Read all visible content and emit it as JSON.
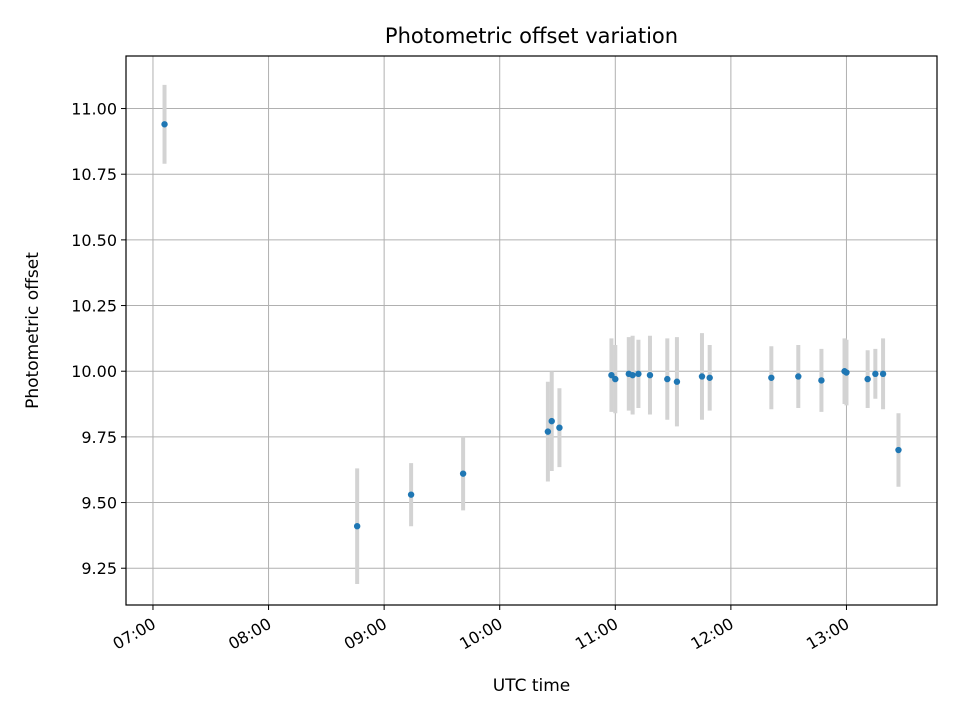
{
  "chart_data": {
    "type": "scatter",
    "title": "Photometric offset variation",
    "xlabel": "UTC time",
    "ylabel": "Photometric offset",
    "grid": true,
    "xlim": [
      "06:46",
      "13:47"
    ],
    "ylim": [
      9.11,
      11.2
    ],
    "x_ticks": [
      "07:00",
      "08:00",
      "09:00",
      "10:00",
      "11:00",
      "12:00",
      "13:00"
    ],
    "y_ticks": [
      9.25,
      9.5,
      9.75,
      10.0,
      10.25,
      10.5,
      10.75,
      11.0
    ],
    "y_tick_labels": [
      "9.25",
      "9.50",
      "9.75",
      "10.00",
      "10.25",
      "10.50",
      "10.75",
      "11.00"
    ],
    "errorbar_color": "#d3d3d3",
    "marker_color": "#1f77b4",
    "series": [
      {
        "points": [
          {
            "time": "07:06",
            "y": 10.94,
            "err": 0.15
          },
          {
            "time": "08:46",
            "y": 9.41,
            "err": 0.22
          },
          {
            "time": "09:14",
            "y": 9.53,
            "err": 0.12
          },
          {
            "time": "09:41",
            "y": 9.61,
            "err": 0.14
          },
          {
            "time": "10:25",
            "y": 9.77,
            "err": 0.19
          },
          {
            "time": "10:27",
            "y": 9.81,
            "err": 0.19
          },
          {
            "time": "10:31",
            "y": 9.785,
            "err": 0.15
          },
          {
            "time": "10:58",
            "y": 9.985,
            "err": 0.14
          },
          {
            "time": "11:00",
            "y": 9.97,
            "err": 0.13
          },
          {
            "time": "11:07",
            "y": 9.99,
            "err": 0.14
          },
          {
            "time": "11:09",
            "y": 9.985,
            "err": 0.15
          },
          {
            "time": "11:12",
            "y": 9.99,
            "err": 0.13
          },
          {
            "time": "11:18",
            "y": 9.985,
            "err": 0.15
          },
          {
            "time": "11:27",
            "y": 9.97,
            "err": 0.155
          },
          {
            "time": "11:32",
            "y": 9.96,
            "err": 0.17
          },
          {
            "time": "11:45",
            "y": 9.98,
            "err": 0.165
          },
          {
            "time": "11:49",
            "y": 9.975,
            "err": 0.125
          },
          {
            "time": "12:21",
            "y": 9.975,
            "err": 0.12
          },
          {
            "time": "12:35",
            "y": 9.98,
            "err": 0.12
          },
          {
            "time": "12:47",
            "y": 9.965,
            "err": 0.12
          },
          {
            "time": "12:59",
            "y": 10.0,
            "err": 0.125
          },
          {
            "time": "13:00",
            "y": 9.995,
            "err": 0.125
          },
          {
            "time": "13:11",
            "y": 9.97,
            "err": 0.11
          },
          {
            "time": "13:15",
            "y": 9.99,
            "err": 0.095
          },
          {
            "time": "13:19",
            "y": 9.99,
            "err": 0.135
          },
          {
            "time": "13:27",
            "y": 9.7,
            "err": 0.14
          }
        ]
      }
    ]
  }
}
